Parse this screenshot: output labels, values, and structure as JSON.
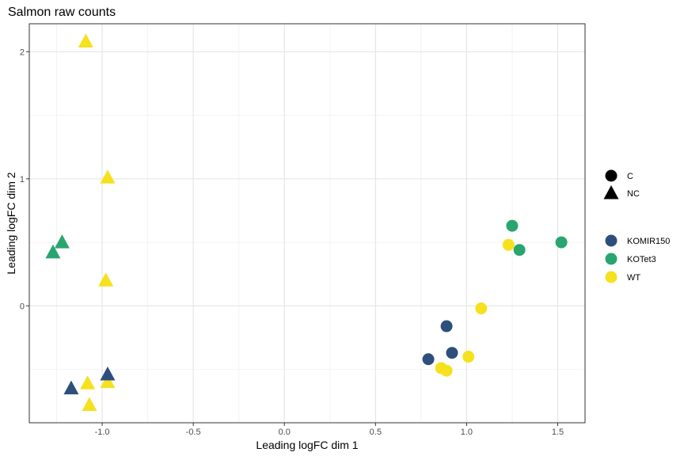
{
  "chart_data": {
    "type": "scatter",
    "title": "Salmon raw counts",
    "xlabel": "Leading logFC dim 1",
    "ylabel": "Leading logFC dim 2",
    "xlim": [
      -1.4,
      1.65
    ],
    "ylim": [
      -0.92,
      2.22
    ],
    "x_ticks": [
      -1.0,
      -0.5,
      0.0,
      0.5,
      1.0,
      1.5
    ],
    "x_tick_labels": [
      "-1.0",
      "-0.5",
      "0.0",
      "0.5",
      "1.0",
      "1.5"
    ],
    "y_ticks": [
      0,
      1,
      2
    ],
    "y_tick_labels": [
      "0",
      "1",
      "2"
    ],
    "grid": true,
    "shape_legend": [
      {
        "label": "C",
        "shape": "circle"
      },
      {
        "label": "NC",
        "shape": "triangle"
      }
    ],
    "color_legend": [
      {
        "label": "KOMIR150",
        "color": "#2d4f7c"
      },
      {
        "label": "KOTet3",
        "color": "#2aa56f"
      },
      {
        "label": "WT",
        "color": "#f5e11d"
      }
    ],
    "legend_position": "right",
    "points": [
      {
        "x": -1.09,
        "y": 2.08,
        "group": "WT",
        "shape": "triangle"
      },
      {
        "x": -0.97,
        "y": 1.01,
        "group": "WT",
        "shape": "triangle"
      },
      {
        "x": -0.98,
        "y": 0.2,
        "group": "WT",
        "shape": "triangle"
      },
      {
        "x": -1.22,
        "y": 0.5,
        "group": "KOTet3",
        "shape": "triangle"
      },
      {
        "x": -1.27,
        "y": 0.42,
        "group": "KOTet3",
        "shape": "triangle"
      },
      {
        "x": -0.97,
        "y": -0.6,
        "group": "WT",
        "shape": "triangle"
      },
      {
        "x": -1.08,
        "y": -0.61,
        "group": "WT",
        "shape": "triangle"
      },
      {
        "x": -0.97,
        "y": -0.54,
        "group": "KOMIR150",
        "shape": "triangle"
      },
      {
        "x": -1.17,
        "y": -0.65,
        "group": "KOMIR150",
        "shape": "triangle"
      },
      {
        "x": -1.07,
        "y": -0.78,
        "group": "WT",
        "shape": "triangle"
      },
      {
        "x": 1.25,
        "y": 0.63,
        "group": "KOTet3",
        "shape": "circle"
      },
      {
        "x": 1.52,
        "y": 0.5,
        "group": "KOTet3",
        "shape": "circle"
      },
      {
        "x": 1.29,
        "y": 0.44,
        "group": "KOTet3",
        "shape": "circle"
      },
      {
        "x": 1.23,
        "y": 0.48,
        "group": "WT",
        "shape": "circle"
      },
      {
        "x": 1.08,
        "y": -0.02,
        "group": "WT",
        "shape": "circle"
      },
      {
        "x": 0.89,
        "y": -0.16,
        "group": "KOMIR150",
        "shape": "circle"
      },
      {
        "x": 0.92,
        "y": -0.37,
        "group": "KOMIR150",
        "shape": "circle"
      },
      {
        "x": 0.79,
        "y": -0.42,
        "group": "KOMIR150",
        "shape": "circle"
      },
      {
        "x": 1.01,
        "y": -0.4,
        "group": "WT",
        "shape": "circle"
      },
      {
        "x": 0.86,
        "y": -0.49,
        "group": "WT",
        "shape": "circle"
      },
      {
        "x": 0.89,
        "y": -0.51,
        "group": "WT",
        "shape": "circle"
      }
    ]
  }
}
